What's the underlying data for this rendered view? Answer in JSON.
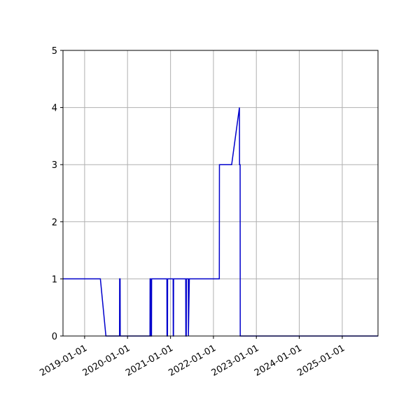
{
  "chart_data": {
    "type": "line",
    "title": "",
    "xlabel": "",
    "ylabel": "",
    "x_axis_type": "date",
    "xlim": [
      "2018-07-01",
      "2025-11-01"
    ],
    "ylim": [
      0,
      5
    ],
    "grid": true,
    "line_color": "#0000cc",
    "grid_color": "#b0b0b0",
    "x_ticks": [
      "2019-01-01",
      "2020-01-01",
      "2021-01-01",
      "2022-01-01",
      "2023-01-01",
      "2024-01-01",
      "2025-01-01"
    ],
    "y_ticks": [
      "0",
      "1",
      "2",
      "3",
      "4",
      "5"
    ],
    "series": [
      {
        "x": [
          "2018-07-01",
          "2019-05-15",
          "2019-07-01",
          "2019-10-25",
          "2019-10-26",
          "2019-10-30",
          "2019-10-31",
          "2020-07-10",
          "2020-07-11",
          "2020-07-17",
          "2020-07-18",
          "2020-07-23",
          "2020-07-24",
          "2020-12-01",
          "2020-12-02",
          "2020-12-06",
          "2020-12-07",
          "2021-01-23",
          "2021-01-24",
          "2021-01-26",
          "2021-01-27",
          "2021-05-10",
          "2021-05-11",
          "2021-05-15",
          "2021-05-16",
          "2021-06-01",
          "2021-06-02",
          "2021-06-10",
          "2022-02-20",
          "2022-02-21",
          "2022-06-05",
          "2022-08-10",
          "2022-08-11",
          "2022-08-16",
          "2022-08-17",
          "2025-11-01"
        ],
        "y": [
          1,
          1,
          0,
          0,
          1,
          1,
          0,
          0,
          1,
          1,
          0,
          0,
          1,
          1,
          0,
          0,
          1,
          1,
          0,
          0,
          1,
          1,
          0,
          0,
          1,
          1,
          0,
          1,
          1,
          3,
          3,
          4,
          3,
          3,
          0,
          0
        ]
      }
    ]
  }
}
